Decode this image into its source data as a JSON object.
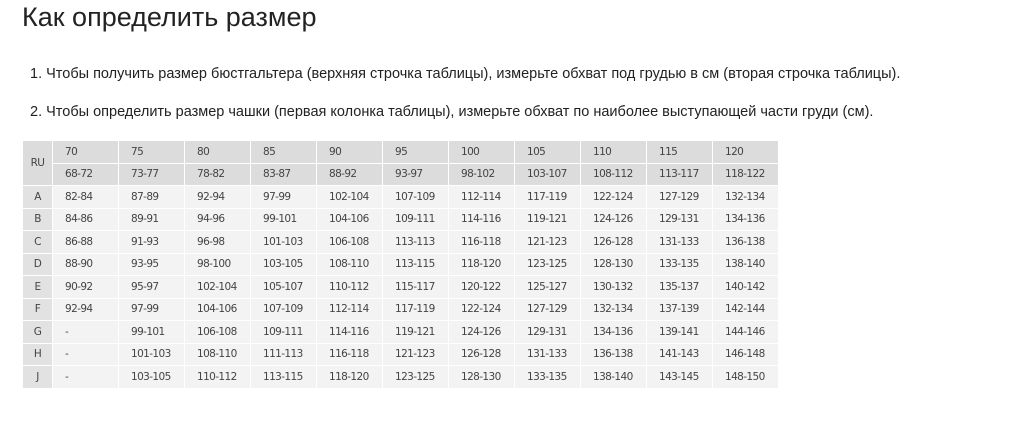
{
  "title": "Как определить размер",
  "steps": [
    "1. Чтобы получить размер бюстгальтера (верхняя строчка таблицы), измерьте обхват под грудью в см (вторая строчка таблицы).",
    "2. Чтобы определить размер чашки (первая колонка таблицы), измерьте обхват по наиболее выступающей части груди (см)."
  ],
  "table": {
    "corner": "RU",
    "sizes": [
      "70",
      "75",
      "80",
      "85",
      "90",
      "95",
      "100",
      "105",
      "110",
      "115",
      "120"
    ],
    "underbust": [
      "68-72",
      "73-77",
      "78-82",
      "83-87",
      "88-92",
      "93-97",
      "98-102",
      "103-107",
      "108-112",
      "113-117",
      "118-122"
    ],
    "rows": [
      {
        "cup": "A",
        "values": [
          "82-84",
          "87-89",
          "92-94",
          "97-99",
          "102-104",
          "107-109",
          "112-114",
          "117-119",
          "122-124",
          "127-129",
          "132-134"
        ]
      },
      {
        "cup": "B",
        "values": [
          "84-86",
          "89-91",
          "94-96",
          "99-101",
          "104-106",
          "109-111",
          "114-116",
          "119-121",
          "124-126",
          "129-131",
          "134-136"
        ]
      },
      {
        "cup": "C",
        "values": [
          "86-88",
          "91-93",
          "96-98",
          "101-103",
          "106-108",
          "113-113",
          "116-118",
          "121-123",
          "126-128",
          "131-133",
          "136-138"
        ]
      },
      {
        "cup": "D",
        "values": [
          "88-90",
          "93-95",
          "98-100",
          "103-105",
          "108-110",
          "113-115",
          "118-120",
          "123-125",
          "128-130",
          "133-135",
          "138-140"
        ]
      },
      {
        "cup": "E",
        "values": [
          "90-92",
          "95-97",
          "102-104",
          "105-107",
          "110-112",
          "115-117",
          "120-122",
          "125-127",
          "130-132",
          "135-137",
          "140-142"
        ]
      },
      {
        "cup": "F",
        "values": [
          "92-94",
          "97-99",
          "104-106",
          "107-109",
          "112-114",
          "117-119",
          "122-124",
          "127-129",
          "132-134",
          "137-139",
          "142-144"
        ]
      },
      {
        "cup": "G",
        "values": [
          "-",
          "99-101",
          "106-108",
          "109-111",
          "114-116",
          "119-121",
          "124-126",
          "129-131",
          "134-136",
          "139-141",
          "144-146"
        ]
      },
      {
        "cup": "H",
        "values": [
          "-",
          "101-103",
          "108-110",
          "111-113",
          "116-118",
          "121-123",
          "126-128",
          "131-133",
          "136-138",
          "141-143",
          "146-148"
        ]
      },
      {
        "cup": "J",
        "values": [
          "-",
          "103-105",
          "110-112",
          "113-115",
          "118-120",
          "123-125",
          "128-130",
          "133-135",
          "138-140",
          "143-145",
          "148-150"
        ]
      }
    ]
  }
}
